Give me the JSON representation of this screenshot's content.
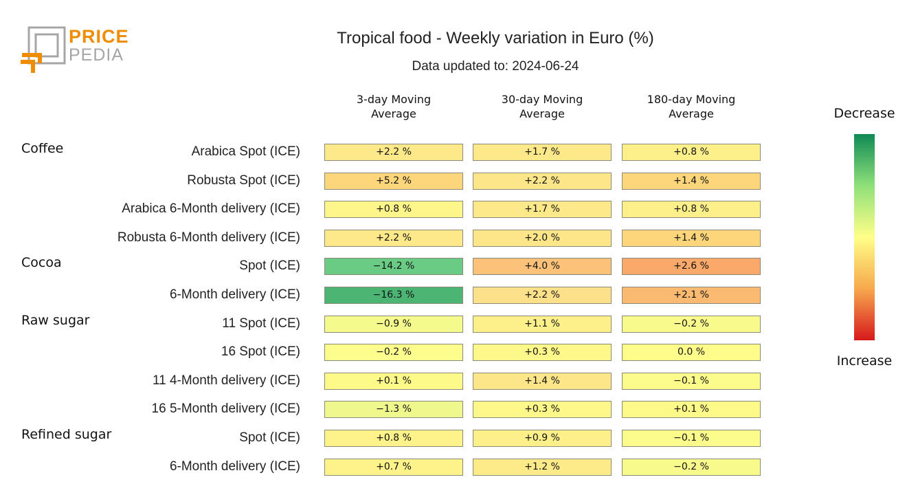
{
  "logo": {
    "line1": "PRICE",
    "line2": "PEDIA"
  },
  "chart_data": {
    "type": "table",
    "title": "Tropical food - Weekly variation in Euro (%)",
    "subtitle": "Data updated to: 2024-06-24",
    "columns": [
      "3-day Moving\nAverage",
      "30-day Moving\nAverage",
      "180-day Moving\nAverage"
    ],
    "groups": [
      {
        "name": "Coffee",
        "rows": [
          {
            "label": "Arabica Spot (ICE)",
            "values": [
              "+2.2 %",
              "+1.7 %",
              "+0.8 %"
            ],
            "colors": [
              "#fde88a",
              "#fde88a",
              "#fdf08a"
            ]
          },
          {
            "label": "Robusta Spot (ICE)",
            "values": [
              "+5.2 %",
              "+2.2 %",
              "+1.4 %"
            ],
            "colors": [
              "#fdd57a",
              "#fde68a",
              "#fdd57a"
            ]
          },
          {
            "label": "Arabica 6-Month delivery (ICE)",
            "values": [
              "+0.8 %",
              "+1.7 %",
              "+0.8 %"
            ],
            "colors": [
              "#fef68a",
              "#fde88a",
              "#fdf08a"
            ]
          },
          {
            "label": "Robusta 6-Month delivery (ICE)",
            "values": [
              "+2.2 %",
              "+2.0 %",
              "+1.4 %"
            ],
            "colors": [
              "#fde88a",
              "#fde68a",
              "#fdd57a"
            ]
          }
        ]
      },
      {
        "name": "Cocoa",
        "rows": [
          {
            "label": "Spot (ICE)",
            "values": [
              "−14.2 %",
              "+4.0 %",
              "+2.6 %"
            ],
            "colors": [
              "#6acb84",
              "#fdc27a",
              "#fba96a"
            ]
          },
          {
            "label": "6-Month delivery (ICE)",
            "values": [
              "−16.3 %",
              "+2.2 %",
              "+2.1 %"
            ],
            "colors": [
              "#4cb574",
              "#fde08a",
              "#fbba72"
            ]
          }
        ]
      },
      {
        "name": "Raw sugar",
        "rows": [
          {
            "label": "11 Spot (ICE)",
            "values": [
              "−0.9 %",
              "+1.1 %",
              "−0.2 %"
            ],
            "colors": [
              "#f4fa8c",
              "#fdef8a",
              "#f8fb8c"
            ]
          },
          {
            "label": "16 Spot (ICE)",
            "values": [
              "−0.2 %",
              "+0.3 %",
              "0.0 %"
            ],
            "colors": [
              "#fcfd8c",
              "#fef88a",
              "#fefd8c"
            ]
          },
          {
            "label": "11 4-Month delivery (ICE)",
            "values": [
              "+0.1 %",
              "+1.4 %",
              "−0.1 %"
            ],
            "colors": [
              "#fefa8a",
              "#fde68a",
              "#fbfc8c"
            ]
          },
          {
            "label": "16 5-Month delivery (ICE)",
            "values": [
              "−1.3 %",
              "+0.3 %",
              "+0.1 %"
            ],
            "colors": [
              "#eef88c",
              "#fef88a",
              "#fefa8a"
            ]
          }
        ]
      },
      {
        "name": "Refined sugar",
        "rows": [
          {
            "label": "Spot (ICE)",
            "values": [
              "+0.8 %",
              "+0.9 %",
              "−0.1 %"
            ],
            "colors": [
              "#fef28a",
              "#fdf08a",
              "#fbfc8c"
            ]
          },
          {
            "label": "6-Month delivery (ICE)",
            "values": [
              "+0.7 %",
              "+1.2 %",
              "−0.2 %"
            ],
            "colors": [
              "#fef38a",
              "#fdeb8a",
              "#f8fb8c"
            ]
          }
        ]
      }
    ],
    "colorbar": {
      "top_label": "Decrease",
      "bottom_label": "Increase",
      "colors": [
        "#0f8a55",
        "#8fe07a",
        "#ffff88",
        "#f7a84e",
        "#d7191c"
      ]
    }
  }
}
